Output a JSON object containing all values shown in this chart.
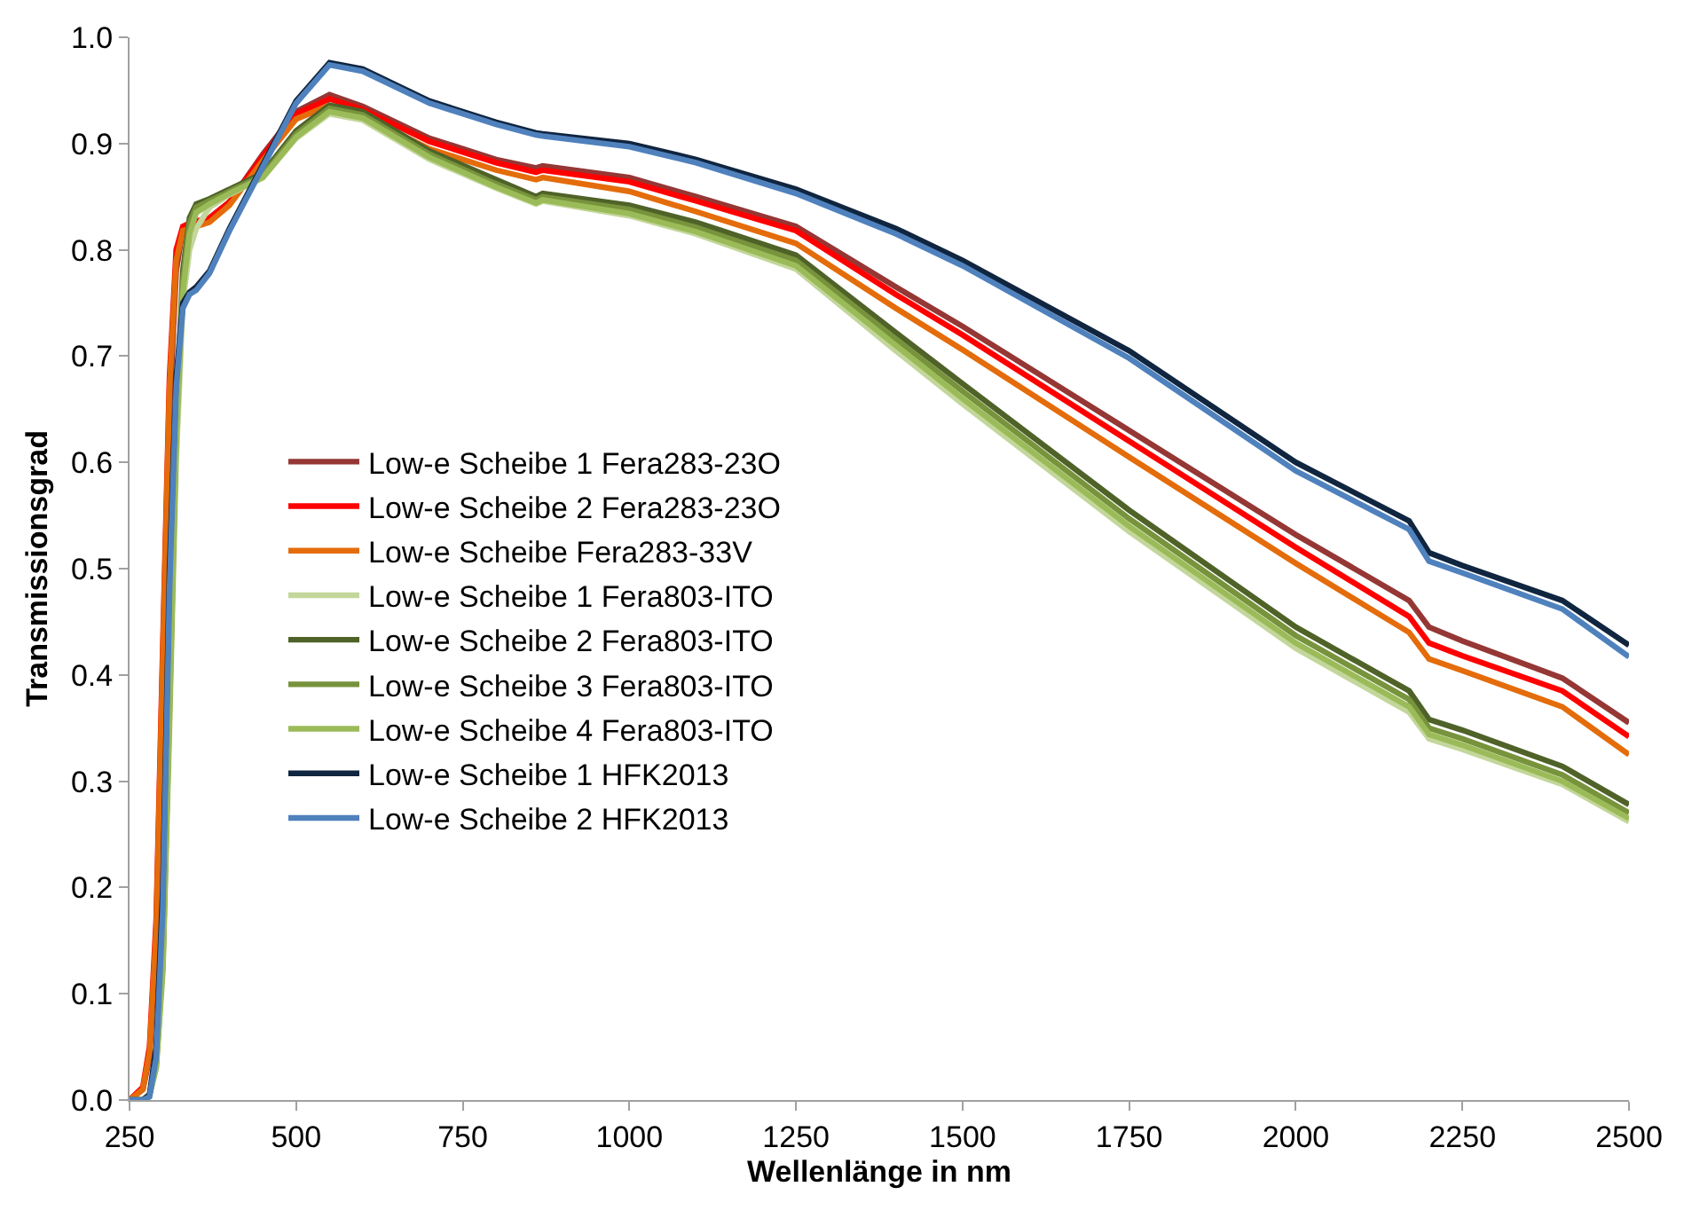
{
  "chart_data": {
    "type": "line",
    "xlabel": "Wellenlänge in nm",
    "ylabel": "Transmissionsgrad",
    "x": [
      250,
      270,
      280,
      290,
      300,
      310,
      320,
      330,
      340,
      350,
      370,
      400,
      450,
      500,
      550,
      600,
      700,
      800,
      860,
      870,
      1000,
      1100,
      1250,
      1400,
      1500,
      1750,
      2000,
      2170,
      2200,
      2250,
      2400,
      2500
    ],
    "xlim": [
      250,
      2500
    ],
    "xticks": [
      250,
      500,
      750,
      1000,
      1250,
      1500,
      1750,
      2000,
      2250,
      2500
    ],
    "ylim": [
      0,
      1
    ],
    "yticks": [
      {
        "value": 0,
        "label": "0.0"
      },
      0.1,
      0.2,
      0.3,
      0.4,
      0.5,
      0.6,
      0.7,
      0.8,
      0.9,
      {
        "value": 1,
        "label": "1.0"
      }
    ],
    "legend": "left",
    "marker": "none",
    "line_style": "solid",
    "series": [
      {
        "name": "Low-e Scheibe 1 Fera283-23O",
        "color": "#953735",
        "values": [
          0,
          0.01,
          0.04,
          0.15,
          0.4,
          0.65,
          0.78,
          0.82,
          0.822,
          0.825,
          0.83,
          0.845,
          0.89,
          0.93,
          0.946,
          0.935,
          0.905,
          0.885,
          0.877,
          0.879,
          0.868,
          0.85,
          0.822,
          0.765,
          0.728,
          0.63,
          0.532,
          0.47,
          0.445,
          0.432,
          0.397,
          0.355
        ]
      },
      {
        "name": "Low-e Scheibe 2 Fera283-23O",
        "color": "#ff0000",
        "values": [
          0,
          0.012,
          0.05,
          0.17,
          0.43,
          0.68,
          0.8,
          0.822,
          0.825,
          0.827,
          0.83,
          0.845,
          0.888,
          0.928,
          0.942,
          0.932,
          0.902,
          0.882,
          0.873,
          0.875,
          0.864,
          0.846,
          0.818,
          0.758,
          0.72,
          0.62,
          0.52,
          0.455,
          0.43,
          0.418,
          0.385,
          0.342
        ]
      },
      {
        "name": "Low-e Scheibe Fera283-33V",
        "color": "#e46c0a",
        "values": [
          0,
          0.01,
          0.045,
          0.16,
          0.42,
          0.67,
          0.79,
          0.818,
          0.82,
          0.822,
          0.826,
          0.842,
          0.884,
          0.923,
          0.936,
          0.926,
          0.895,
          0.875,
          0.866,
          0.868,
          0.855,
          0.836,
          0.806,
          0.745,
          0.706,
          0.605,
          0.505,
          0.44,
          0.415,
          0.404,
          0.37,
          0.325
        ]
      },
      {
        "name": "Low-e Scheibe 1 Fera803-ITO",
        "color": "#c3d69b",
        "values": [
          0,
          0,
          0.005,
          0.03,
          0.12,
          0.35,
          0.6,
          0.75,
          0.8,
          0.82,
          0.84,
          0.852,
          0.868,
          0.905,
          0.928,
          0.922,
          0.885,
          0.858,
          0.843,
          0.846,
          0.832,
          0.815,
          0.782,
          0.705,
          0.655,
          0.535,
          0.425,
          0.365,
          0.34,
          0.33,
          0.297,
          0.262
        ]
      },
      {
        "name": "Low-e Scheibe 2 Fera803-ITO",
        "color": "#4f6228",
        "values": [
          0,
          0,
          0.005,
          0.035,
          0.14,
          0.38,
          0.64,
          0.78,
          0.83,
          0.843,
          0.848,
          0.857,
          0.872,
          0.912,
          0.936,
          0.93,
          0.893,
          0.866,
          0.85,
          0.853,
          0.842,
          0.826,
          0.795,
          0.722,
          0.674,
          0.555,
          0.445,
          0.385,
          0.358,
          0.348,
          0.314,
          0.278
        ]
      },
      {
        "name": "Low-e Scheibe 3 Fera803-ITO",
        "color": "#77933c",
        "values": [
          0,
          0,
          0.005,
          0.033,
          0.13,
          0.37,
          0.63,
          0.77,
          0.825,
          0.84,
          0.846,
          0.855,
          0.87,
          0.909,
          0.933,
          0.927,
          0.89,
          0.862,
          0.847,
          0.85,
          0.838,
          0.821,
          0.79,
          0.716,
          0.667,
          0.547,
          0.437,
          0.377,
          0.35,
          0.34,
          0.306,
          0.27
        ]
      },
      {
        "name": "Low-e Scheibe 4 Fera803-ITO",
        "color": "#9bbb59",
        "values": [
          0,
          0,
          0.005,
          0.03,
          0.125,
          0.36,
          0.62,
          0.76,
          0.815,
          0.835,
          0.843,
          0.853,
          0.868,
          0.906,
          0.93,
          0.924,
          0.887,
          0.859,
          0.844,
          0.847,
          0.834,
          0.817,
          0.785,
          0.71,
          0.66,
          0.54,
          0.43,
          0.37,
          0.344,
          0.334,
          0.3,
          0.265
        ]
      },
      {
        "name": "Low-e Scheibe 1 HFK2013",
        "color": "#10253f",
        "values": [
          0,
          0,
          0.005,
          0.05,
          0.2,
          0.5,
          0.68,
          0.75,
          0.76,
          0.765,
          0.78,
          0.82,
          0.88,
          0.94,
          0.976,
          0.97,
          0.94,
          0.92,
          0.91,
          0.909,
          0.9,
          0.885,
          0.857,
          0.82,
          0.79,
          0.705,
          0.6,
          0.545,
          0.515,
          0.503,
          0.47,
          0.428
        ]
      },
      {
        "name": "Low-e Scheibe 2 HFK2013",
        "color": "#4f81bd",
        "values": [
          0,
          0,
          0.003,
          0.04,
          0.18,
          0.48,
          0.67,
          0.745,
          0.758,
          0.762,
          0.778,
          0.818,
          0.878,
          0.938,
          0.974,
          0.968,
          0.938,
          0.918,
          0.908,
          0.907,
          0.897,
          0.882,
          0.853,
          0.815,
          0.785,
          0.698,
          0.592,
          0.537,
          0.507,
          0.496,
          0.462,
          0.417
        ]
      }
    ]
  }
}
